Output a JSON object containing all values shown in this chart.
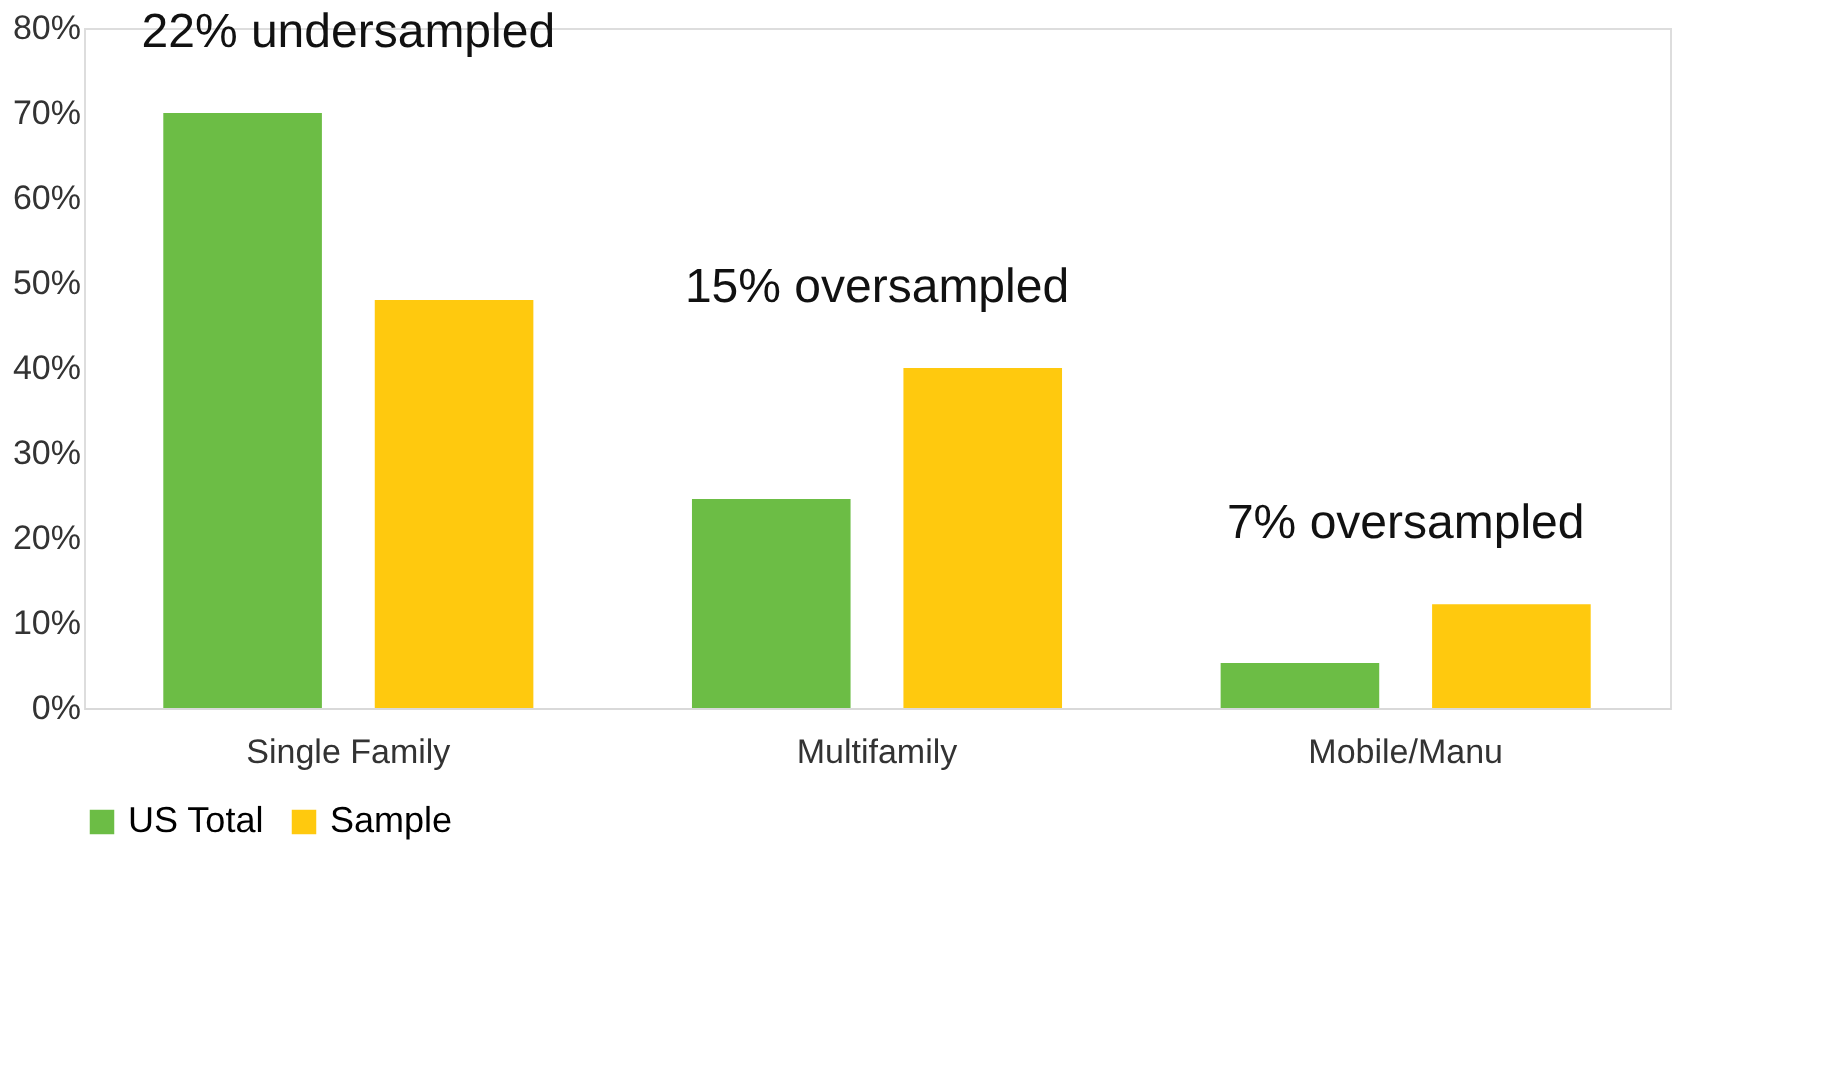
{
  "chart_data": {
    "type": "bar",
    "categories": [
      "Single Family",
      "Multifamily",
      "Mobile/Manu"
    ],
    "series": [
      {
        "name": "US Total",
        "color": "#6cbd45",
        "values": [
          70,
          24.6,
          5.3
        ]
      },
      {
        "name": "Sample",
        "color": "#ffc90e",
        "values": [
          48,
          40,
          12.2
        ]
      }
    ],
    "ylim": [
      0,
      80
    ],
    "yticks": [
      {
        "value": 0,
        "label": "0%"
      },
      {
        "value": 10,
        "label": "10%"
      },
      {
        "value": 20,
        "label": "20%"
      },
      {
        "value": 30,
        "label": "30%"
      },
      {
        "value": 40,
        "label": "40%"
      },
      {
        "value": 50,
        "label": "50%"
      },
      {
        "value": 60,
        "label": "60%"
      },
      {
        "value": 70,
        "label": "70%"
      },
      {
        "value": 80,
        "label": "80%"
      }
    ],
    "annotations": [
      "22% undersampled",
      "15% oversampled",
      "7% oversampled"
    ],
    "grid": false,
    "legend": "bottom"
  }
}
